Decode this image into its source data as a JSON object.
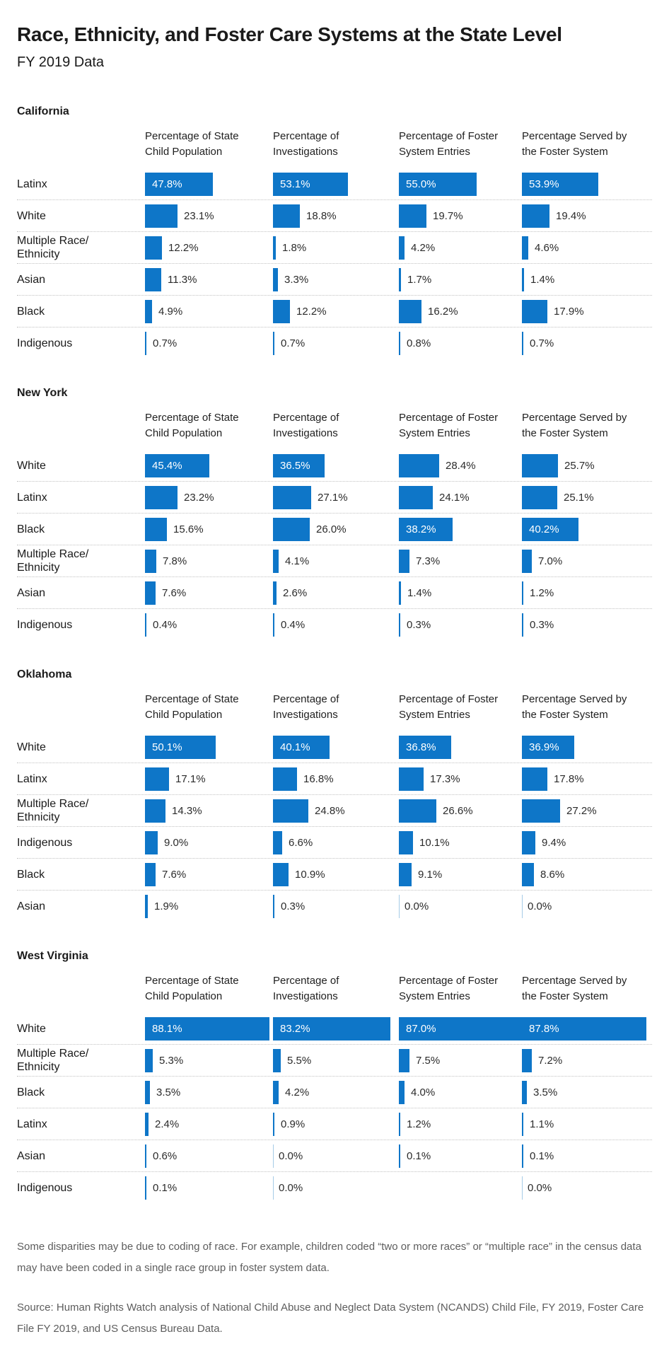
{
  "title": "Race, Ethnicity, and Foster Care Systems at the State Level",
  "subtitle": "FY 2019 Data",
  "colors": {
    "bar": "#0e76c8",
    "zero_axis_line": "#a6cbe7",
    "separator": "#c2c2c2",
    "note_text": "#5d5d5d"
  },
  "chart_data": {
    "type": "bar",
    "orientation": "horizontal",
    "unit": "%",
    "xlim": [
      0,
      100
    ],
    "grid": "off",
    "legend": "none",
    "value_label_format": "one-decimal-percent",
    "bar_label_inside_threshold": 30,
    "columns": [
      "Percentage of State\nChild Population",
      "Percentage of\nInvestigations",
      "Percentage of Foster\nSystem Entries",
      "Percentage Served by\nthe Foster System"
    ],
    "states": [
      {
        "name": "California",
        "rows": [
          {
            "label": "Latinx",
            "values": [
              47.8,
              53.1,
              55.0,
              53.9
            ]
          },
          {
            "label": "White",
            "values": [
              23.1,
              18.8,
              19.7,
              19.4
            ]
          },
          {
            "label": "Multiple Race/\nEthnicity",
            "values": [
              12.2,
              1.8,
              4.2,
              4.6
            ]
          },
          {
            "label": "Asian",
            "values": [
              11.3,
              3.3,
              1.7,
              1.4
            ]
          },
          {
            "label": "Black",
            "values": [
              4.9,
              12.2,
              16.2,
              17.9
            ]
          },
          {
            "label": "Indigenous",
            "values": [
              0.7,
              0.7,
              0.8,
              0.7
            ]
          }
        ]
      },
      {
        "name": "New York",
        "rows": [
          {
            "label": "White",
            "values": [
              45.4,
              36.5,
              28.4,
              25.7
            ]
          },
          {
            "label": "Latinx",
            "values": [
              23.2,
              27.1,
              24.1,
              25.1
            ]
          },
          {
            "label": "Black",
            "values": [
              15.6,
              26.0,
              38.2,
              40.2
            ]
          },
          {
            "label": "Multiple Race/\nEthnicity",
            "values": [
              7.8,
              4.1,
              7.3,
              7.0
            ]
          },
          {
            "label": "Asian",
            "values": [
              7.6,
              2.6,
              1.4,
              1.2
            ]
          },
          {
            "label": "Indigenous",
            "values": [
              0.4,
              0.4,
              0.3,
              0.3
            ]
          }
        ]
      },
      {
        "name": "Oklahoma",
        "rows": [
          {
            "label": "White",
            "values": [
              50.1,
              40.1,
              36.8,
              36.9
            ]
          },
          {
            "label": "Latinx",
            "values": [
              17.1,
              16.8,
              17.3,
              17.8
            ]
          },
          {
            "label": "Multiple Race/\nEthnicity",
            "values": [
              14.3,
              24.8,
              26.6,
              27.2
            ]
          },
          {
            "label": "Indigenous",
            "values": [
              9.0,
              6.6,
              10.1,
              9.4
            ]
          },
          {
            "label": "Black",
            "values": [
              7.6,
              10.9,
              9.1,
              8.6
            ]
          },
          {
            "label": "Asian",
            "values": [
              1.9,
              0.3,
              0.0,
              0.0
            ]
          }
        ]
      },
      {
        "name": "West Virginia",
        "rows": [
          {
            "label": "White",
            "values": [
              88.1,
              83.2,
              87.0,
              87.8
            ]
          },
          {
            "label": "Multiple Race/\nEthnicity",
            "values": [
              5.3,
              5.5,
              7.5,
              7.2
            ]
          },
          {
            "label": "Black",
            "values": [
              3.5,
              4.2,
              4.0,
              3.5
            ]
          },
          {
            "label": "Latinx",
            "values": [
              2.4,
              0.9,
              1.2,
              1.1
            ]
          },
          {
            "label": "Asian",
            "values": [
              0.6,
              0.0,
              0.1,
              0.1
            ]
          },
          {
            "label": "Indigenous",
            "values": [
              0.1,
              0.0,
              null,
              0.0
            ]
          }
        ]
      }
    ]
  },
  "notes": {
    "disclaimer": "Some disparities may be due to coding of race. For example, children coded “two or more races” or “multiple race” in the census data may have been coded in a single race group in foster system data.",
    "source": "Source: Human Rights Watch analysis of National Child Abuse and Neglect Data System (NCANDS) Child File, FY 2019, Foster Care File FY 2019, and US Census Bureau Data."
  }
}
